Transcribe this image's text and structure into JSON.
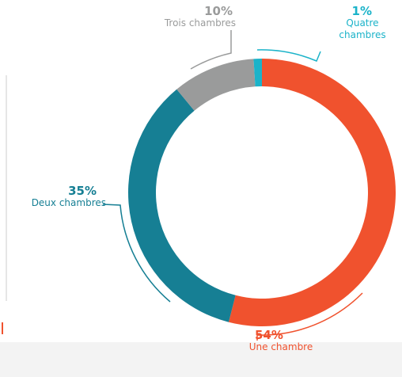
{
  "chart_data": {
    "type": "pie",
    "donut": true,
    "categories": [
      "Une chambre",
      "Deux chambres",
      "Trois chambres",
      "Quatre chambres"
    ],
    "values": [
      54,
      35,
      10,
      1
    ],
    "value_labels": [
      "54%",
      "35%",
      "10%",
      "1%"
    ],
    "colors": [
      "#f0522e",
      "#167f94",
      "#9a9b9b",
      "#1bb3c9"
    ]
  }
}
